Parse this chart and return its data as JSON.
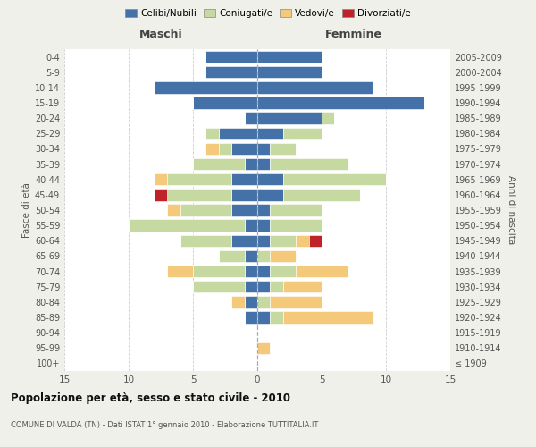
{
  "age_groups": [
    "100+",
    "95-99",
    "90-94",
    "85-89",
    "80-84",
    "75-79",
    "70-74",
    "65-69",
    "60-64",
    "55-59",
    "50-54",
    "45-49",
    "40-44",
    "35-39",
    "30-34",
    "25-29",
    "20-24",
    "15-19",
    "10-14",
    "5-9",
    "0-4"
  ],
  "birth_years": [
    "≤ 1909",
    "1910-1914",
    "1915-1919",
    "1920-1924",
    "1925-1929",
    "1930-1934",
    "1935-1939",
    "1940-1944",
    "1945-1949",
    "1950-1954",
    "1955-1959",
    "1960-1964",
    "1965-1969",
    "1970-1974",
    "1975-1979",
    "1980-1984",
    "1985-1989",
    "1990-1994",
    "1995-1999",
    "2000-2004",
    "2005-2009"
  ],
  "male": {
    "celibe": [
      0,
      0,
      0,
      1,
      1,
      1,
      1,
      1,
      2,
      1,
      2,
      2,
      2,
      1,
      2,
      3,
      1,
      5,
      8,
      4,
      4
    ],
    "coniugato": [
      0,
      0,
      0,
      0,
      0,
      4,
      4,
      2,
      4,
      9,
      4,
      5,
      5,
      4,
      1,
      1,
      0,
      0,
      0,
      0,
      0
    ],
    "vedovo": [
      0,
      0,
      0,
      0,
      1,
      0,
      2,
      0,
      0,
      0,
      1,
      0,
      1,
      0,
      1,
      0,
      0,
      0,
      0,
      0,
      0
    ],
    "divorziato": [
      0,
      0,
      0,
      0,
      0,
      0,
      0,
      0,
      0,
      0,
      0,
      1,
      0,
      0,
      0,
      0,
      0,
      0,
      0,
      0,
      0
    ]
  },
  "female": {
    "nubile": [
      0,
      0,
      0,
      1,
      0,
      1,
      1,
      0,
      1,
      1,
      1,
      2,
      2,
      1,
      1,
      2,
      5,
      13,
      9,
      5,
      5
    ],
    "coniugata": [
      0,
      0,
      0,
      1,
      1,
      1,
      2,
      1,
      2,
      4,
      4,
      6,
      8,
      6,
      2,
      3,
      1,
      0,
      0,
      0,
      0
    ],
    "vedova": [
      0,
      1,
      0,
      7,
      4,
      3,
      4,
      2,
      1,
      0,
      0,
      0,
      0,
      0,
      0,
      0,
      0,
      0,
      0,
      0,
      0
    ],
    "divorziata": [
      0,
      0,
      0,
      0,
      0,
      0,
      0,
      0,
      1,
      0,
      0,
      0,
      0,
      0,
      0,
      0,
      0,
      0,
      0,
      0,
      0
    ]
  },
  "colors": {
    "celibe": "#4472a8",
    "coniugato": "#c5d9a0",
    "vedovo": "#f5c97a",
    "divorziato": "#c0222a"
  },
  "legend_labels": [
    "Celibi/Nubili",
    "Coniugati/e",
    "Vedovi/e",
    "Divorziati/e"
  ],
  "title_main": "Popolazione per età, sesso e stato civile - 2010",
  "title_sub": "COMUNE DI VALDA (TN) - Dati ISTAT 1° gennaio 2010 - Elaborazione TUTTITALIA.IT",
  "xlim": 15,
  "bg_color": "#f0f0eb",
  "plot_bg": "#ffffff"
}
